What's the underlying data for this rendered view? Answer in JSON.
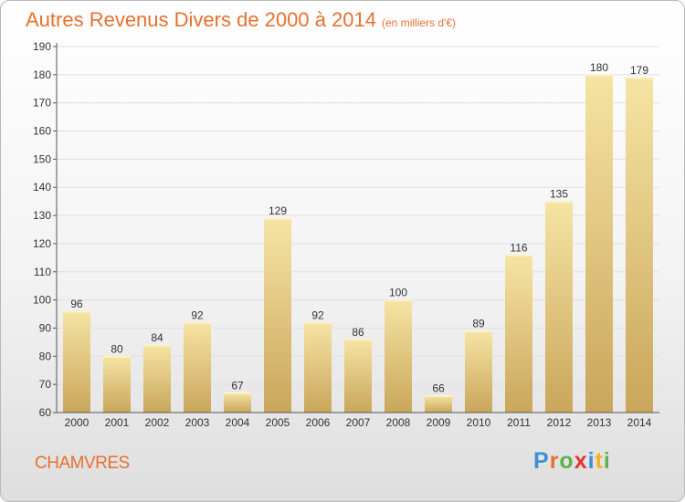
{
  "title": "Autres Revenus Divers de 2000 à 2014",
  "unit": "(en milliers d'€)",
  "town": "CHAMVRES",
  "logo": {
    "letters": [
      "P",
      "r",
      "o",
      "x",
      "i",
      "t",
      "i"
    ],
    "colors": [
      "#3d8fd6",
      "#e8702f",
      "#5db34a",
      "#e0352b",
      "#3d8fd6",
      "#f2b21b",
      "#5db34a"
    ]
  },
  "colors": {
    "title": "#e8702f",
    "bar_light": "#f6e4a4",
    "bar_dark": "#c9a65a",
    "grid": "#e0e0e0"
  },
  "chart_data": {
    "type": "bar",
    "categories": [
      "2000",
      "2001",
      "2002",
      "2003",
      "2004",
      "2005",
      "2006",
      "2007",
      "2008",
      "2009",
      "2010",
      "2011",
      "2012",
      "2013",
      "2014"
    ],
    "values": [
      96,
      80,
      84,
      92,
      67,
      129,
      92,
      86,
      100,
      66,
      89,
      116,
      135,
      180,
      179
    ],
    "ylim": [
      60,
      190
    ],
    "yticks": [
      60,
      70,
      80,
      90,
      100,
      110,
      120,
      130,
      140,
      150,
      160,
      170,
      180,
      190
    ],
    "grid": true
  }
}
